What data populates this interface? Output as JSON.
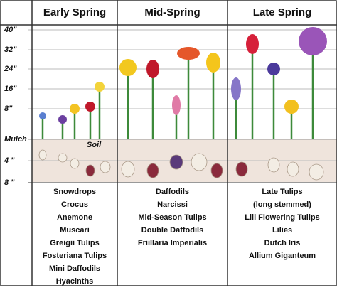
{
  "columns": [
    {
      "title": "Early Spring",
      "plants": [
        "Snowdrops",
        "Crocus",
        "Anemone",
        "Muscari",
        "Greigii Tulips",
        "Fosteriana Tulips",
        "Mini Daffodils",
        "Hyacinths"
      ]
    },
    {
      "title": "Mid-Spring",
      "plants": [
        "Daffodils",
        "Narcissi",
        "Mid-Season Tulips",
        "Double Daffodils",
        "Friillaria Imperialis"
      ]
    },
    {
      "title": "Late Spring",
      "plants": [
        "Late Tulips",
        "(long stemmed)",
        "Lili Flowering Tulips",
        "Lilies",
        "Dutch Iris",
        "Allium Giganteum"
      ]
    }
  ],
  "scale": [
    "40\"",
    "32\"",
    "24\"",
    "16\"",
    "8\"",
    "Mulch",
    "4 \"",
    "8 \""
  ],
  "soil_label": "Soil"
}
